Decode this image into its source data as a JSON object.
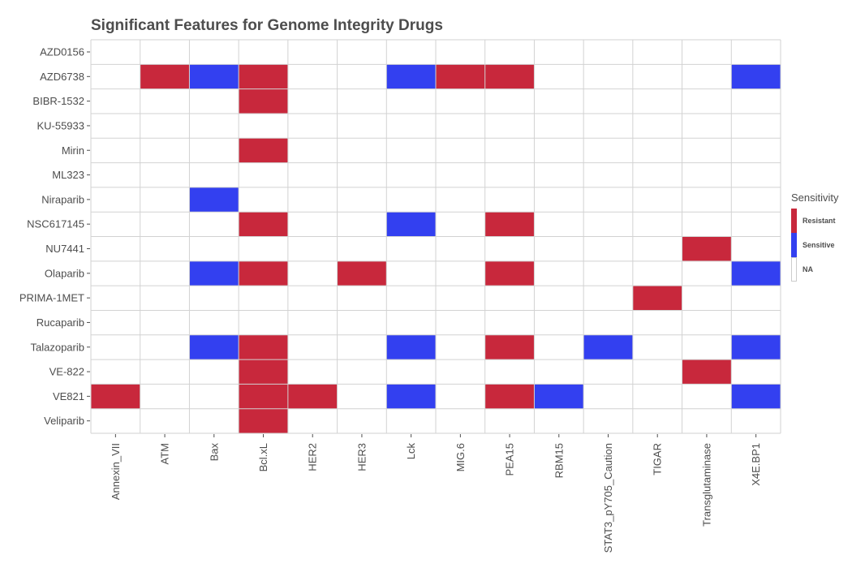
{
  "chart_data": {
    "type": "heatmap",
    "title": "Significant Features for Genome Integrity Drugs",
    "xlabel": "",
    "ylabel": "",
    "x_categories": [
      "Annexin_VII",
      "ATM",
      "Bax",
      "Bcl.xL",
      "HER2",
      "HER3",
      "Lck",
      "MIG.6",
      "PEA15",
      "RBM15",
      "STAT3_pY705_Caution",
      "TIGAR",
      "Transglutaminase",
      "X4E.BP1"
    ],
    "y_categories": [
      "AZD0156",
      "AZD6738",
      "BIBR-1532",
      "KU-55933",
      "Mirin",
      "ML323",
      "Niraparib",
      "NSC617145",
      "NU7441",
      "Olaparib",
      "PRIMA-1MET",
      "Rucaparib",
      "Talazoparib",
      "VE-822",
      "VE821",
      "Veliparib"
    ],
    "cells": [
      {
        "drug": "AZD6738",
        "feature": "ATM",
        "value": "Resistant"
      },
      {
        "drug": "AZD6738",
        "feature": "Bax",
        "value": "Sensitive"
      },
      {
        "drug": "AZD6738",
        "feature": "Bcl.xL",
        "value": "Resistant"
      },
      {
        "drug": "AZD6738",
        "feature": "Lck",
        "value": "Sensitive"
      },
      {
        "drug": "AZD6738",
        "feature": "MIG.6",
        "value": "Resistant"
      },
      {
        "drug": "AZD6738",
        "feature": "PEA15",
        "value": "Resistant"
      },
      {
        "drug": "AZD6738",
        "feature": "X4E.BP1",
        "value": "Sensitive"
      },
      {
        "drug": "BIBR-1532",
        "feature": "Bcl.xL",
        "value": "Resistant"
      },
      {
        "drug": "Mirin",
        "feature": "Bcl.xL",
        "value": "Resistant"
      },
      {
        "drug": "Niraparib",
        "feature": "Bax",
        "value": "Sensitive"
      },
      {
        "drug": "NSC617145",
        "feature": "Bcl.xL",
        "value": "Resistant"
      },
      {
        "drug": "NSC617145",
        "feature": "Lck",
        "value": "Sensitive"
      },
      {
        "drug": "NSC617145",
        "feature": "PEA15",
        "value": "Resistant"
      },
      {
        "drug": "NU7441",
        "feature": "Transglutaminase",
        "value": "Resistant"
      },
      {
        "drug": "Olaparib",
        "feature": "Bax",
        "value": "Sensitive"
      },
      {
        "drug": "Olaparib",
        "feature": "Bcl.xL",
        "value": "Resistant"
      },
      {
        "drug": "Olaparib",
        "feature": "HER3",
        "value": "Resistant"
      },
      {
        "drug": "Olaparib",
        "feature": "PEA15",
        "value": "Resistant"
      },
      {
        "drug": "Olaparib",
        "feature": "X4E.BP1",
        "value": "Sensitive"
      },
      {
        "drug": "PRIMA-1MET",
        "feature": "TIGAR",
        "value": "Resistant"
      },
      {
        "drug": "Talazoparib",
        "feature": "Bax",
        "value": "Sensitive"
      },
      {
        "drug": "Talazoparib",
        "feature": "Bcl.xL",
        "value": "Resistant"
      },
      {
        "drug": "Talazoparib",
        "feature": "Lck",
        "value": "Sensitive"
      },
      {
        "drug": "Talazoparib",
        "feature": "PEA15",
        "value": "Resistant"
      },
      {
        "drug": "Talazoparib",
        "feature": "STAT3_pY705_Caution",
        "value": "Sensitive"
      },
      {
        "drug": "Talazoparib",
        "feature": "X4E.BP1",
        "value": "Sensitive"
      },
      {
        "drug": "VE-822",
        "feature": "Bcl.xL",
        "value": "Resistant"
      },
      {
        "drug": "VE-822",
        "feature": "Transglutaminase",
        "value": "Resistant"
      },
      {
        "drug": "VE821",
        "feature": "Annexin_VII",
        "value": "Resistant"
      },
      {
        "drug": "VE821",
        "feature": "Bcl.xL",
        "value": "Resistant"
      },
      {
        "drug": "VE821",
        "feature": "HER2",
        "value": "Resistant"
      },
      {
        "drug": "VE821",
        "feature": "Lck",
        "value": "Sensitive"
      },
      {
        "drug": "VE821",
        "feature": "PEA15",
        "value": "Resistant"
      },
      {
        "drug": "VE821",
        "feature": "RBM15",
        "value": "Sensitive"
      },
      {
        "drug": "VE821",
        "feature": "X4E.BP1",
        "value": "Sensitive"
      },
      {
        "drug": "Veliparib",
        "feature": "Bcl.xL",
        "value": "Resistant"
      }
    ],
    "legend": {
      "title": "Sensitivity",
      "placement": "right",
      "items": [
        {
          "label": "Resistant",
          "color": "#c8283c"
        },
        {
          "label": "Sensitive",
          "color": "#3340f0"
        },
        {
          "label": "NA",
          "color": "#ffffff"
        }
      ]
    },
    "grid": true
  }
}
